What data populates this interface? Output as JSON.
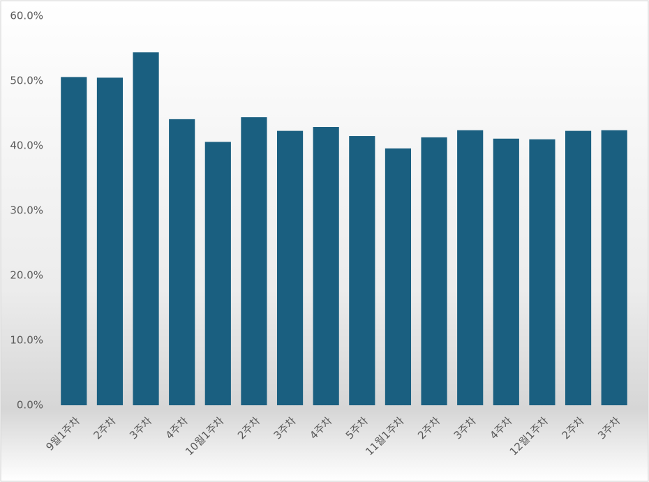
{
  "chart_data": {
    "type": "bar",
    "categories": [
      "9월1주차",
      "2주차",
      "3주차",
      "4주차",
      "10월1주차",
      "2주차",
      "3주차",
      "4주차",
      "5주차",
      "11월1주차",
      "2주차",
      "3주차",
      "4주차",
      "12월1주차",
      "2주차",
      "3주차"
    ],
    "values": [
      50.6,
      50.5,
      54.4,
      44.1,
      40.6,
      44.4,
      42.3,
      42.9,
      41.5,
      39.6,
      41.3,
      42.4,
      41.1,
      41.0,
      42.3,
      42.4
    ],
    "color": "#1a5f80",
    "ylim": [
      0,
      60
    ],
    "yticks": [
      {
        "value": 0,
        "label": "0.0%"
      },
      {
        "value": 10,
        "label": "10.0%"
      },
      {
        "value": 20,
        "label": "20.0%"
      },
      {
        "value": 30,
        "label": "30.0%"
      },
      {
        "value": 40,
        "label": "40.0%"
      },
      {
        "value": 50,
        "label": "50.0%"
      },
      {
        "value": 60,
        "label": "60.0%"
      }
    ]
  }
}
